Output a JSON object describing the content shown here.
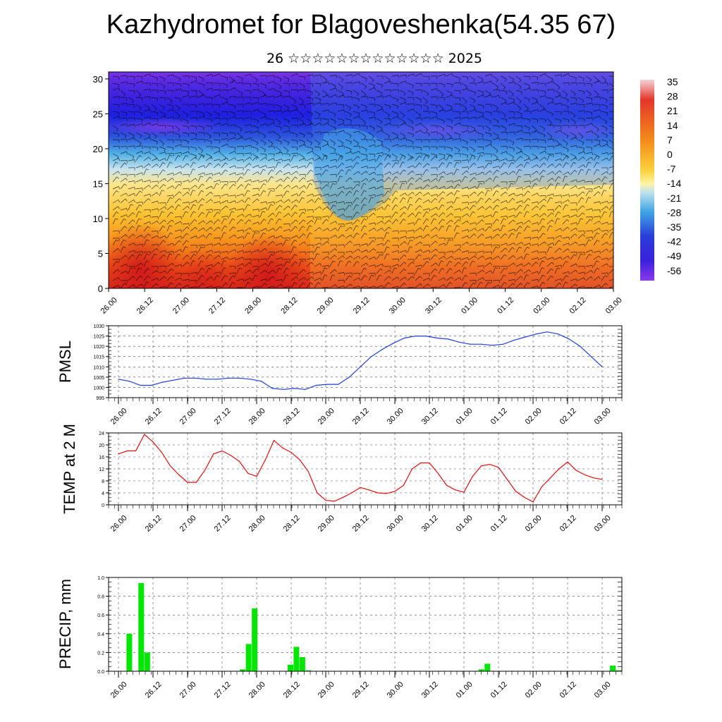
{
  "title": "Kazhydromet for Blagoveshenka(54.35 67)",
  "subtitle": "26 ☆☆☆☆☆☆☆☆☆☆☆☆☆ 2025",
  "colors": {
    "pmsl_line": "#1f3fd6",
    "temp_line": "#e01010",
    "precip_bar": "#00e600",
    "cross_section_scale": [
      "#f4c9d0",
      "#e23a2a",
      "#ee6a12",
      "#f6a21a",
      "#fbd43a",
      "#fdf3a0",
      "#c9e6ef",
      "#41a7e2",
      "#2b49d9",
      "#4a1fdb",
      "#8a36e6"
    ]
  },
  "x_tick_labels": [
    "26.00",
    "26.12",
    "27.00",
    "27.12",
    "28.00",
    "28.12",
    "29.00",
    "29.12",
    "30.00",
    "30.12",
    "01.00",
    "01.12",
    "02.00",
    "02.12",
    "03.00"
  ],
  "chart_data": [
    {
      "type": "heatmap",
      "name": "cross_section",
      "title": "",
      "xlabel": "",
      "ylabel": "",
      "ylim": [
        0,
        31
      ],
      "y_ticks": [
        "0",
        "5",
        "10",
        "15",
        "20",
        "25",
        "30"
      ],
      "colorbar_labels": [
        "35",
        "28",
        "21",
        "14",
        "7",
        "0",
        "-7",
        "-14",
        "-21",
        "-28",
        "-35",
        "-42",
        "-49",
        "-56"
      ],
      "note_overlays": "wind barbs and contour lines"
    },
    {
      "type": "line",
      "name": "PMSL",
      "ylabel": "PMSL",
      "ylim": [
        995,
        1030
      ],
      "y_ticks": [
        "995",
        "1000",
        "1005",
        "1010",
        "1015",
        "1020",
        "1025",
        "1030"
      ],
      "values": [
        1004,
        1003,
        1001,
        1001,
        1002.5,
        1003.5,
        1004.5,
        1004.5,
        1004,
        1004,
        1004.5,
        1004.5,
        1004,
        1003,
        999.5,
        999,
        999.5,
        999,
        1001,
        1001.5,
        1001.5,
        1005,
        1010,
        1015,
        1018.5,
        1021.5,
        1024,
        1025,
        1025,
        1024,
        1023.5,
        1022,
        1021,
        1021,
        1020.5,
        1021,
        1023,
        1024.5,
        1026,
        1027,
        1026,
        1023.5,
        1020,
        1015,
        1010
      ]
    },
    {
      "type": "line",
      "name": "TEMP at 2 M",
      "ylabel": "TEMP at 2 M",
      "ylim": [
        0,
        24
      ],
      "y_ticks": [
        "0",
        "4",
        "8",
        "12",
        "16",
        "20",
        "24"
      ],
      "values": [
        17,
        18,
        18,
        23.5,
        21,
        17.5,
        13,
        10,
        7.5,
        7.5,
        11.5,
        17,
        18,
        16.5,
        14.5,
        10.5,
        9.5,
        15,
        21.5,
        19,
        17.5,
        15,
        11,
        4,
        1.5,
        1.2,
        2.5,
        4,
        5.8,
        5,
        4,
        3.8,
        4.5,
        6.5,
        12,
        14,
        14,
        10.5,
        6.5,
        5,
        4.2,
        9.5,
        13,
        13.5,
        12.5,
        8.5,
        4.5,
        2.5,
        1,
        6,
        9,
        12,
        14.3,
        11.5,
        10,
        9,
        8.5
      ]
    },
    {
      "type": "bar",
      "name": "PRECIP, mm",
      "ylabel": "PRECIP, mm",
      "ylim": [
        0,
        1.0
      ],
      "y_ticks": [
        "0.0",
        "0.2",
        "0.4",
        "0.6",
        "0.8",
        "1.0"
      ],
      "values": [
        0,
        0,
        0,
        0.4,
        0,
        0.94,
        0.2,
        0,
        0,
        0,
        0,
        0,
        0,
        0,
        0,
        0,
        0,
        0,
        0,
        0,
        0,
        0,
        0.02,
        0.29,
        0.67,
        0,
        0,
        0,
        0,
        0,
        0.07,
        0.26,
        0.15,
        0.01,
        0,
        0,
        0,
        0,
        0,
        0,
        0,
        0,
        0,
        0,
        0,
        0,
        0,
        0,
        0,
        0,
        0,
        0,
        0,
        0,
        0,
        0,
        0,
        0,
        0,
        0,
        0,
        0,
        0.02,
        0.08,
        0,
        0,
        0,
        0,
        0,
        0,
        0,
        0,
        0,
        0,
        0,
        0,
        0,
        0,
        0,
        0,
        0,
        0,
        0,
        0,
        0.06,
        0.01
      ]
    }
  ]
}
